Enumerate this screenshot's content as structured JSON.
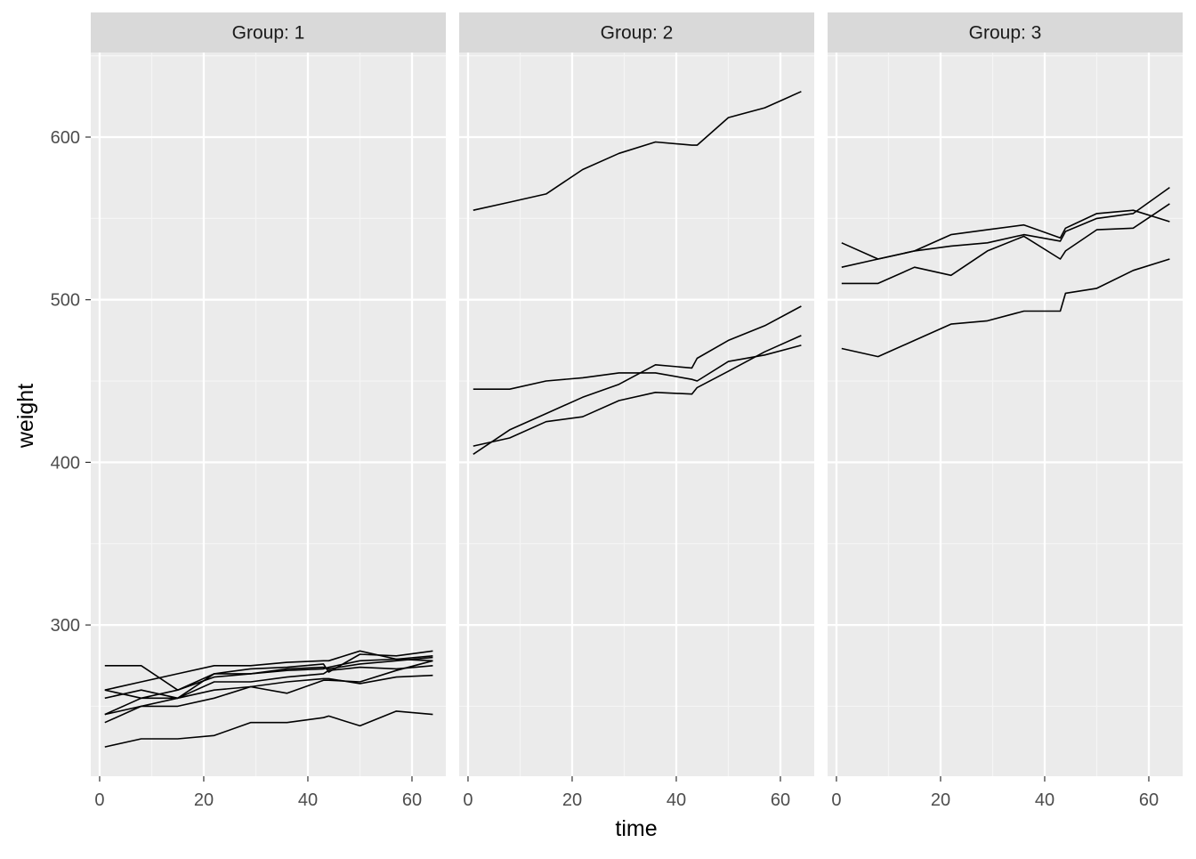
{
  "chart_data": {
    "type": "line",
    "xlabel": "time",
    "ylabel": "weight",
    "xlim": [
      -1.7,
      66.5
    ],
    "ylim": [
      207,
      652
    ],
    "x_ticks": [
      0,
      20,
      40,
      60
    ],
    "y_ticks": [
      300,
      400,
      500,
      600
    ],
    "grid": true,
    "panels": [
      {
        "strip": "Group: 1",
        "series": [
          {
            "x": [
              1,
              8,
              15,
              22,
              29,
              36,
              43,
              44,
              50,
              57,
              64
            ],
            "y": [
              240,
              250,
              255,
              260,
              262,
              258,
              266,
              266,
              265,
              272,
              278
            ]
          },
          {
            "x": [
              1,
              8,
              15,
              22,
              29,
              36,
              43,
              44,
              50,
              57,
              64
            ],
            "y": [
              225,
              230,
              230,
              232,
              240,
              240,
              243,
              244,
              238,
              247,
              245
            ]
          },
          {
            "x": [
              1,
              8,
              15,
              22,
              29,
              36,
              43,
              44,
              50,
              57,
              64
            ],
            "y": [
              245,
              250,
              250,
              255,
              262,
              265,
              267,
              267,
              264,
              268,
              269
            ]
          },
          {
            "x": [
              1,
              8,
              15,
              22,
              29,
              36,
              43,
              44,
              50,
              57,
              64
            ],
            "y": [
              260,
              255,
              255,
              265,
              265,
              268,
              270,
              272,
              274,
              273,
              275
            ]
          },
          {
            "x": [
              1,
              8,
              15,
              22,
              29,
              36,
              43,
              44,
              50,
              57,
              64
            ],
            "y": [
              255,
              260,
              255,
              270,
              270,
              273,
              274,
              273,
              276,
              278,
              280
            ]
          },
          {
            "x": [
              1,
              8,
              15,
              22,
              29,
              36,
              43,
              44,
              50,
              57,
              64
            ],
            "y": [
              260,
              265,
              270,
              275,
              275,
              277,
              278,
              278,
              284,
              279,
              281
            ]
          },
          {
            "x": [
              1,
              8,
              15,
              22,
              29,
              36,
              43,
              44,
              50,
              57,
              64
            ],
            "y": [
              275,
              275,
              260,
              270,
              273,
              274,
              276,
              271,
              282,
              281,
              284
            ]
          },
          {
            "x": [
              1,
              8,
              15,
              22,
              29,
              36,
              43,
              44,
              50,
              57,
              64
            ],
            "y": [
              245,
              255,
              260,
              268,
              270,
              272,
              273,
              274,
              278,
              279,
              278
            ]
          }
        ]
      },
      {
        "strip": "Group: 2",
        "series": [
          {
            "x": [
              1,
              8,
              15,
              22,
              29,
              36,
              43,
              44,
              50,
              57,
              64
            ],
            "y": [
              410,
              415,
              425,
              428,
              438,
              443,
              442,
              446,
              456,
              468,
              478
            ]
          },
          {
            "x": [
              1,
              8,
              15,
              22,
              29,
              36,
              43,
              44,
              50,
              57,
              64
            ],
            "y": [
              405,
              420,
              430,
              440,
              448,
              460,
              458,
              464,
              475,
              484,
              496
            ]
          },
          {
            "x": [
              1,
              8,
              15,
              22,
              29,
              36,
              43,
              44,
              50,
              57,
              64
            ],
            "y": [
              445,
              445,
              450,
              452,
              455,
              455,
              451,
              450,
              462,
              466,
              472
            ]
          },
          {
            "x": [
              1,
              8,
              15,
              22,
              29,
              36,
              43,
              44,
              50,
              57,
              64
            ],
            "y": [
              555,
              560,
              565,
              580,
              590,
              597,
              595,
              595,
              612,
              618,
              628
            ]
          }
        ]
      },
      {
        "strip": "Group: 3",
        "series": [
          {
            "x": [
              1,
              8,
              15,
              22,
              29,
              36,
              43,
              44,
              50,
              57,
              64
            ],
            "y": [
              470,
              465,
              475,
              485,
              487,
              493,
              493,
              504,
              507,
              518,
              525
            ]
          },
          {
            "x": [
              1,
              8,
              15,
              22,
              29,
              36,
              43,
              44,
              50,
              57,
              64
            ],
            "y": [
              535,
              525,
              530,
              540,
              543,
              546,
              538,
              544,
              553,
              555,
              548
            ]
          },
          {
            "x": [
              1,
              8,
              15,
              22,
              29,
              36,
              43,
              44,
              50,
              57,
              64
            ],
            "y": [
              510,
              510,
              520,
              515,
              530,
              539,
              525,
              530,
              543,
              544,
              559
            ]
          },
          {
            "x": [
              1,
              8,
              15,
              22,
              29,
              36,
              43,
              44,
              50,
              57,
              64
            ],
            "y": [
              520,
              525,
              530,
              533,
              535,
              540,
              536,
              542,
              550,
              553,
              569
            ]
          }
        ]
      }
    ]
  }
}
